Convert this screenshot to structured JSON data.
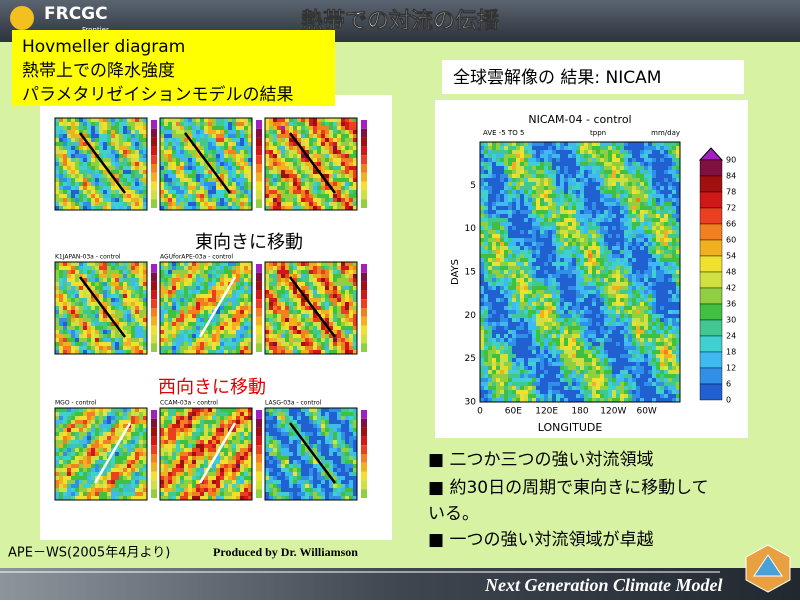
{
  "header": {
    "logo": "FRCGC",
    "logo_sub": "Frontier",
    "title": "熱帯での対流の伝播"
  },
  "label_box": {
    "lines": [
      "Hovmeller diagram",
      "熱帯上での降水強度",
      "パラメタリゼイションモデルの結果"
    ]
  },
  "left_annotations": {
    "east": "東向きに移動",
    "west": "西向きに移動"
  },
  "left_panels": {
    "titles": [
      "K1JAPAN-03a - control",
      "AGUforAPE-03a - control",
      "MGO - control",
      "CCAM-03a - control",
      "LASG-03a - control"
    ]
  },
  "right_title": "全球雲解像の 結果: NICAM",
  "nicam": {
    "title": "NICAM-04 - control",
    "subtitle": "AVE -5 TO 5",
    "var": "tppn",
    "units": "mm/day",
    "y_label": "DAYS",
    "x_label": "LONGITUDE",
    "yticks": [
      "5",
      "10",
      "15",
      "20",
      "25",
      "30"
    ],
    "xticks": [
      "0",
      "60E",
      "120E",
      "180",
      "120W",
      "60W"
    ],
    "colorbar": [
      "90",
      "84",
      "78",
      "72",
      "66",
      "60",
      "54",
      "48",
      "42",
      "36",
      "30",
      "24",
      "18",
      "12",
      "6",
      "0"
    ]
  },
  "bullets": [
    "■ 二つか三つの強い対流領域",
    "■ 約30日の周期で東向きに移動して",
    "いる。",
    "■ 一つの強い対流領域が卓越"
  ],
  "footer": {
    "source": "APE－WS(2005年4月より)",
    "credit": "Produced by Dr. Williamson",
    "tagline": "Next Generation Climate Model"
  }
}
